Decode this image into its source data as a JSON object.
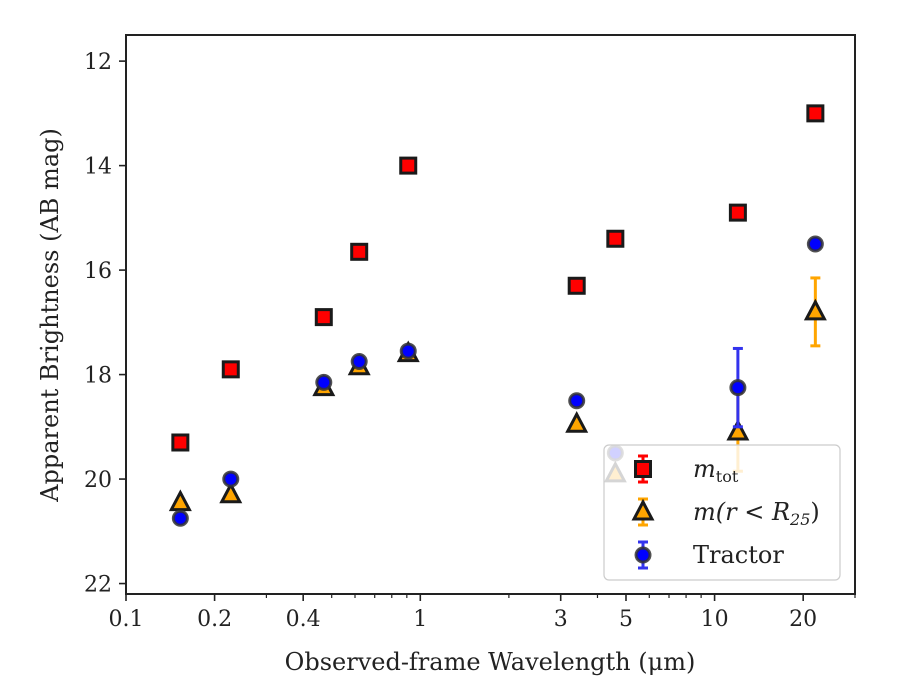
{
  "chart_data": {
    "type": "scatter",
    "title": "",
    "xlabel": "Observed-frame Wavelength (μm)",
    "ylabel": "Apparent Brightness (AB mag)",
    "xscale": "log",
    "xlim": [
      0.1,
      30
    ],
    "ylim": [
      22.2,
      11.5
    ],
    "y_inverted": true,
    "grid": false,
    "legend_position": "lower-right",
    "x_ticks": [
      {
        "value": 0.1,
        "label": "0.1"
      },
      {
        "value": 0.2,
        "label": "0.2"
      },
      {
        "value": 0.4,
        "label": "0.4"
      },
      {
        "value": 1,
        "label": "1"
      },
      {
        "value": 3,
        "label": "3"
      },
      {
        "value": 5,
        "label": "5"
      },
      {
        "value": 10,
        "label": "10"
      },
      {
        "value": 20,
        "label": "20"
      }
    ],
    "y_ticks": [
      {
        "value": 12,
        "label": "12"
      },
      {
        "value": 14,
        "label": "14"
      },
      {
        "value": 16,
        "label": "16"
      },
      {
        "value": 18,
        "label": "18"
      },
      {
        "value": 20,
        "label": "20"
      },
      {
        "value": 22,
        "label": "22"
      }
    ],
    "series": [
      {
        "name": "m_tot",
        "legend_label": "m",
        "legend_sub": "tot",
        "marker": "square",
        "color": "#ff0000",
        "edge_color": "#1a1a1a",
        "points": [
          {
            "x": 0.153,
            "y": 19.3
          },
          {
            "x": 0.227,
            "y": 17.9
          },
          {
            "x": 0.47,
            "y": 16.9
          },
          {
            "x": 0.62,
            "y": 15.65
          },
          {
            "x": 0.91,
            "y": 14.0
          },
          {
            "x": 3.4,
            "y": 16.3
          },
          {
            "x": 4.6,
            "y": 15.4
          },
          {
            "x": 12.0,
            "y": 14.9
          },
          {
            "x": 22.0,
            "y": 13.0
          }
        ]
      },
      {
        "name": "m(r<R25)",
        "legend_label": "m(r < R",
        "legend_sub": "25",
        "legend_suffix": ")",
        "marker": "triangle",
        "color": "#ffa500",
        "edge_color": "#1a1a1a",
        "points": [
          {
            "x": 0.153,
            "y": 20.45
          },
          {
            "x": 0.227,
            "y": 20.3
          },
          {
            "x": 0.47,
            "y": 18.25
          },
          {
            "x": 0.62,
            "y": 17.85
          },
          {
            "x": 0.91,
            "y": 17.6
          },
          {
            "x": 3.4,
            "y": 18.95
          },
          {
            "x": 4.6,
            "y": 19.9
          },
          {
            "x": 12.0,
            "y": 19.1,
            "yerr": 0.75
          },
          {
            "x": 22.0,
            "y": 16.8,
            "yerr": 0.65
          }
        ]
      },
      {
        "name": "Tractor",
        "legend_label": "Tractor",
        "marker": "circle",
        "color": "#0000ff",
        "edge_color": "#333333",
        "points": [
          {
            "x": 0.153,
            "y": 20.75
          },
          {
            "x": 0.227,
            "y": 20.0
          },
          {
            "x": 0.47,
            "y": 18.15
          },
          {
            "x": 0.62,
            "y": 17.75
          },
          {
            "x": 0.91,
            "y": 17.55
          },
          {
            "x": 3.4,
            "y": 18.5
          },
          {
            "x": 4.6,
            "y": 19.5
          },
          {
            "x": 12.0,
            "y": 18.25,
            "yerr": 0.75
          },
          {
            "x": 22.0,
            "y": 15.5
          }
        ]
      }
    ]
  }
}
